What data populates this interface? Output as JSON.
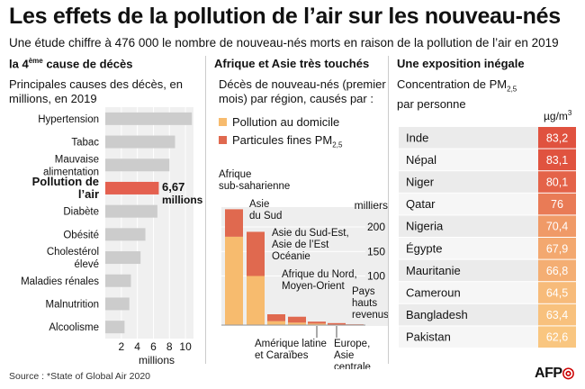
{
  "title": "Les effets de la pollution de l’air sur les nouveau-nés",
  "subtitle": "Une étude chiffre à 476 000 le nombre de nouveau-nés morts en raison de la pollution de l’air en 2019",
  "col1": {
    "heading_pre": "la 4",
    "heading_sup": "ème",
    "heading_post": " cause de décès",
    "sub_line1": "Principales causes des décès, en",
    "sub_line2": "millions, en 2019"
  },
  "col2": {
    "heading": "Afrique et Asie très touchés",
    "sub_line1": "Décès de nouveau-nés (premier",
    "sub_line2": "mois) par région, causés par :",
    "legend_home": "Pollution au domicile",
    "legend_fine_pre": "Particules fines PM",
    "legend_fine_sub": "2,5"
  },
  "col3": {
    "heading": "Une exposition inégale",
    "sub_line1_pre": "Concentration de PM",
    "sub_line1_sub": "2,5",
    "sub_line2": "par personne",
    "unit_pre": "µg/m",
    "unit_sup": "3"
  },
  "colors": {
    "highlight": "#e4604f",
    "bar_grey": "#cccccc",
    "home": "#f7bb6e",
    "fine": "#e0694f",
    "heat_high": "#e0523f",
    "heat_low": "#f9c680"
  },
  "source": "Source : *State of Global Air 2020",
  "logo": "AFP",
  "chart_data": [
    {
      "type": "bar",
      "orientation": "horizontal",
      "categories": [
        "Hypertension",
        "Tabac",
        "Mauvaise alimentation",
        "Pollution de l’air",
        "Diabète",
        "Obésité",
        "Cholestérol élevé",
        "Maladies rénales",
        "Malnutrition",
        "Alcoolisme"
      ],
      "values": [
        10.8,
        8.7,
        8.0,
        6.67,
        6.5,
        5.0,
        4.4,
        3.2,
        3.0,
        2.4
      ],
      "highlight_index": 3,
      "highlight_label_value": "6,67",
      "highlight_label_unit": "millions",
      "xlim": [
        0,
        11
      ],
      "xticks": [
        "2",
        "4",
        "6",
        "8",
        "10"
      ],
      "xlabel": "millions"
    },
    {
      "type": "bar",
      "stacked": true,
      "categories": [
        "Afrique sub-saharienne",
        "Asie du Sud",
        "Asie du Sud-Est, Asie de l’Est Océanie",
        "Afrique du Nord, Moyen-Orient",
        "Amérique latine et Caraïbes",
        "Europe, Asie centrale",
        "Pays hauts revenus"
      ],
      "series": [
        {
          "name": "Pollution au domicile",
          "values": [
            180,
            100,
            8,
            5,
            3,
            1,
            0.5
          ]
        },
        {
          "name": "Particules fines PM2,5",
          "values": [
            56,
            90,
            14,
            12,
            4,
            3,
            1
          ]
        }
      ],
      "ylabel": "milliers",
      "ylim": [
        0,
        250
      ],
      "yticks": [
        "100",
        "150",
        "200"
      ]
    },
    {
      "type": "table",
      "categories": [
        "Inde",
        "Népal",
        "Niger",
        "Qatar",
        "Nigeria",
        "Égypte",
        "Mauritanie",
        "Cameroun",
        "Bangladesh",
        "Pakistan"
      ],
      "values": [
        83.2,
        83.1,
        80.1,
        76.0,
        70.4,
        67.9,
        66.8,
        64.5,
        63.4,
        62.6
      ],
      "value_labels": [
        "83,2",
        "83,1",
        "80,1",
        "76",
        "70,4",
        "67,9",
        "66,8",
        "64,5",
        "63,4",
        "62,6"
      ],
      "unit": "µg/m3"
    }
  ]
}
